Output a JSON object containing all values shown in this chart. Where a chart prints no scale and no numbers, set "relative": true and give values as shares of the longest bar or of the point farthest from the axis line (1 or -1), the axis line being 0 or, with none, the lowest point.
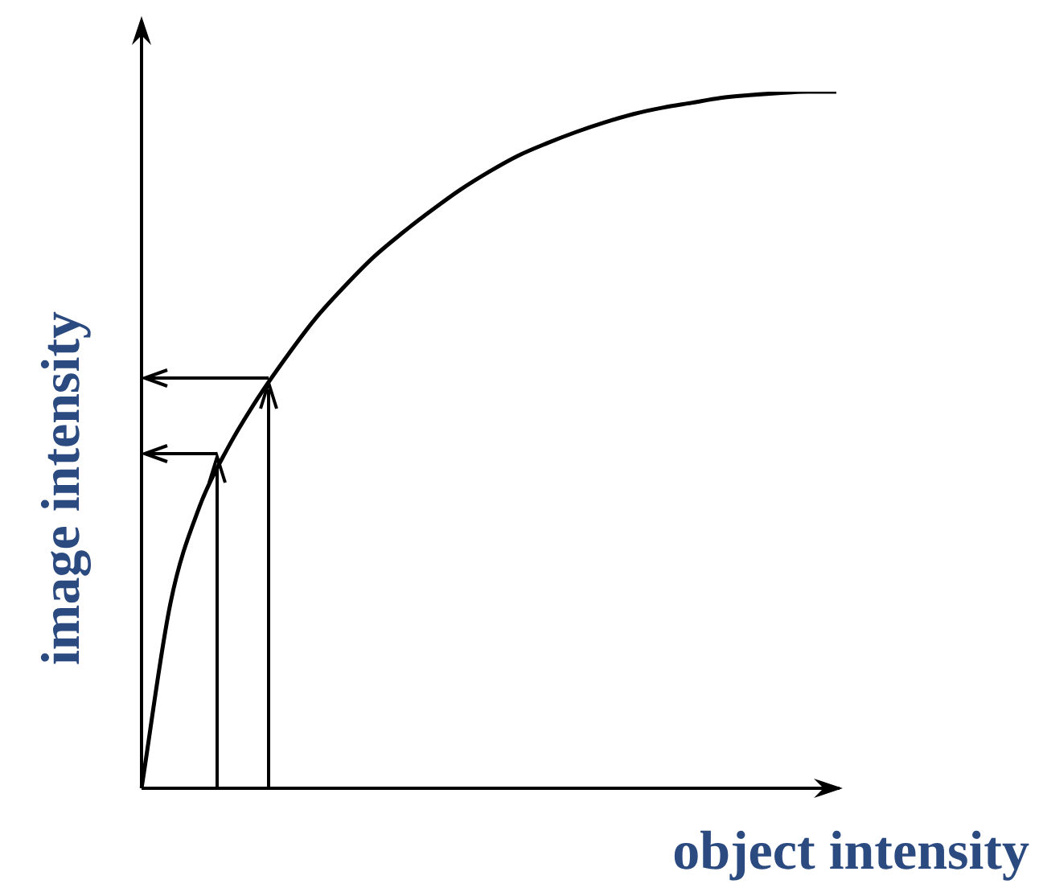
{
  "chart_data": {
    "type": "line",
    "relative": true,
    "xlabel": "object intensity",
    "ylabel": "image intensity",
    "categories": [
      null,
      null,
      null,
      null,
      null,
      null,
      null,
      null,
      null,
      null,
      null,
      null,
      null,
      null,
      null,
      null,
      null,
      null,
      null,
      null,
      null,
      null,
      null,
      null,
      null
    ],
    "series": [
      {
        "color": "#000000",
        "values": [
          0,
          0.266,
          0.404,
          0.49,
          0.559,
          0.619,
          0.674,
          0.72,
          0.762,
          0.797,
          0.829,
          0.859,
          0.885,
          0.908,
          0.926,
          0.942,
          0.956,
          0.968,
          0.977,
          0.984,
          0.991,
          0.995,
          0.998,
          1,
          1
        ]
      }
    ],
    "marker": "none",
    "line_style": "solid",
    "legend": false
  }
}
